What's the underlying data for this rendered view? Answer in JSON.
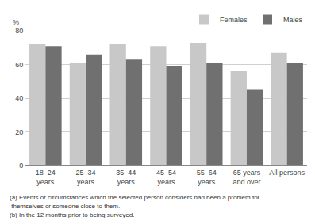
{
  "chart_data": {
    "type": "bar",
    "categories": [
      "18–24\nyears",
      "25–34\nyears",
      "35–44\nyears",
      "45–54\nyears",
      "55–64\nyears",
      "65 years\nand over",
      "All persons"
    ],
    "series": [
      {
        "name": "Females",
        "color": "#c8c8c8",
        "values": [
          72,
          61,
          72,
          71,
          73,
          56,
          67
        ]
      },
      {
        "name": "Males",
        "color": "#707070",
        "values": [
          71,
          66,
          63,
          59,
          61,
          45,
          61
        ]
      }
    ],
    "ylabel": "%",
    "ylim": [
      0,
      80
    ],
    "yticks": [
      0,
      20,
      40,
      60,
      80
    ],
    "grid": true,
    "legend": "upper right",
    "annotations": [
      "(a) Events or circumstances which the selected person considers had been a problem for",
      " themselves or someone close to them.",
      "(b) In the 12 months prior to being surveyed."
    ]
  }
}
